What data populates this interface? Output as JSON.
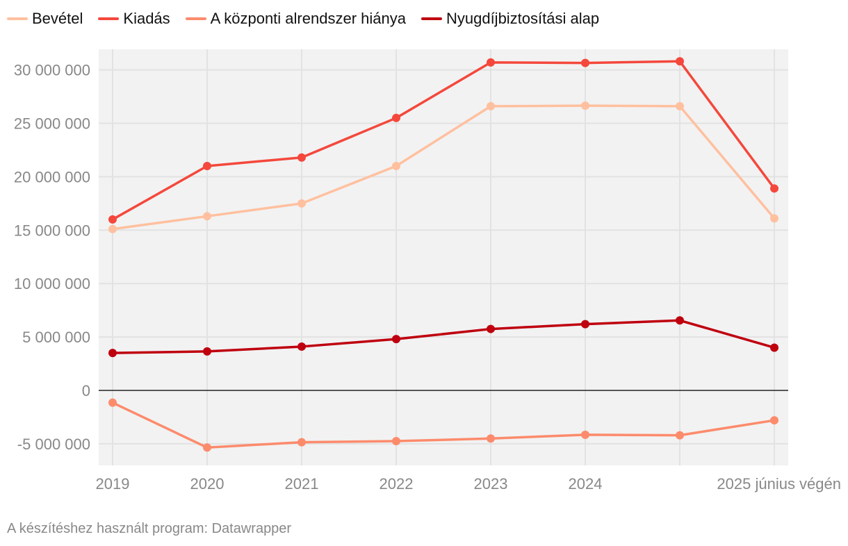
{
  "chart_data": {
    "type": "line",
    "title": "",
    "xlabel": "",
    "ylabel": "",
    "categories": [
      "2019",
      "2020",
      "2021",
      "2022",
      "2023",
      "2024",
      "",
      "2025 június végén"
    ],
    "ylim": [
      -7000000,
      32000000
    ],
    "yticks": [
      {
        "value": 30000000,
        "label": "30 000 000"
      },
      {
        "value": 25000000,
        "label": "25 000 000"
      },
      {
        "value": 20000000,
        "label": "20 000 000"
      },
      {
        "value": 15000000,
        "label": "15 000 000"
      },
      {
        "value": 10000000,
        "label": "10 000 000"
      },
      {
        "value": 5000000,
        "label": "5 000 000"
      },
      {
        "value": 0,
        "label": "0"
      },
      {
        "value": -5000000,
        "label": "-5 000 000"
      }
    ],
    "grid": true,
    "legend_position": "top-left",
    "series": [
      {
        "name": "Bevétel",
        "color": "#ffc09f",
        "values": [
          15100000,
          16300000,
          17500000,
          21000000,
          26600000,
          26650000,
          26600000,
          16100000
        ]
      },
      {
        "name": "Kiadás",
        "color": "#f4483c",
        "values": [
          16000000,
          21000000,
          21800000,
          25500000,
          30700000,
          30650000,
          30800000,
          18900000
        ]
      },
      {
        "name": "A központi alrendszer hiánya",
        "color": "#fc8b6c",
        "values": [
          -1150000,
          -5350000,
          -4850000,
          -4750000,
          -4500000,
          -4150000,
          -4200000,
          -2800000
        ]
      },
      {
        "name": "Nyugdíjbiztosítási alap",
        "color": "#bf000f",
        "values": [
          3500000,
          3650000,
          4100000,
          4800000,
          5750000,
          6200000,
          6550000,
          4000000
        ]
      }
    ]
  },
  "footer": {
    "source_text": "A készítéshez használt program: Datawrapper"
  }
}
